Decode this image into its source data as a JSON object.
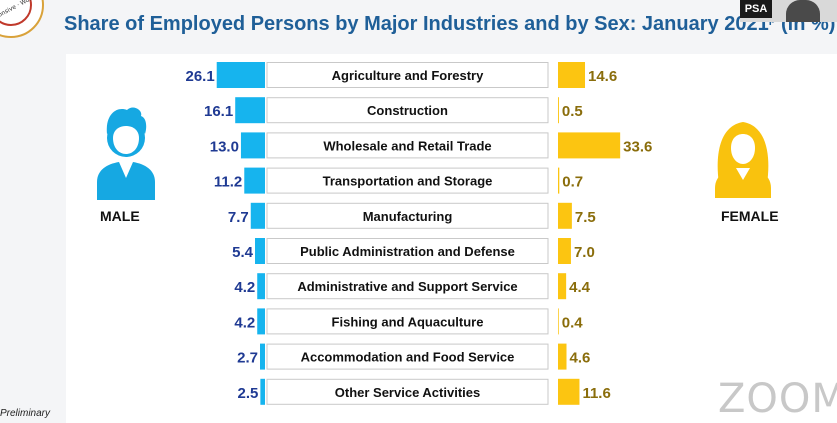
{
  "header": {
    "title": "Share of Employed Persons by Major Industries and by Sex: January 2021",
    "title_marker": "p",
    "title_suffix": "(in %)"
  },
  "logo": {
    "text": "Responsive · World-cl"
  },
  "video": {
    "badge": "PSA"
  },
  "labels": {
    "male": "MALE",
    "female": "FEMALE"
  },
  "footnote": "Preliminary",
  "watermark": "ZOOM",
  "colors": {
    "title": "#1f5f98",
    "male_bar": "#16b4ee",
    "male_value": "#1f3a93",
    "female_bar": "#fcc511",
    "female_value": "#8a6d0b",
    "male_icon": "#16a8e2",
    "female_icon": "#f9c20e"
  },
  "icons": {
    "male": "man-icon",
    "female": "woman-icon"
  },
  "chart_data": {
    "type": "bar",
    "title": "Share of Employed Persons by Major Industries and by Sex: January 2021",
    "categories": [
      "Agriculture and Forestry",
      "Construction",
      "Wholesale and Retail Trade",
      "Transportation and Storage",
      "Manufacturing",
      "Public Administration and Defense",
      "Administrative and Support Service",
      "Fishing and Aquaculture",
      "Accommodation and Food Service",
      "Other Service Activities"
    ],
    "series": [
      {
        "name": "MALE",
        "values": [
          26.1,
          16.1,
          13.0,
          11.2,
          7.7,
          5.4,
          4.2,
          4.2,
          2.7,
          2.5
        ],
        "labels": [
          "26.1",
          "16.1",
          "13.0",
          "11.2",
          "7.7",
          "5.4",
          "4.2",
          "4.2",
          "2.7",
          "2.5"
        ]
      },
      {
        "name": "FEMALE",
        "values": [
          14.6,
          0.5,
          33.6,
          0.7,
          7.5,
          7.0,
          4.4,
          0.4,
          4.6,
          11.6
        ],
        "labels": [
          "14.6",
          "0.5",
          "33.6",
          "0.7",
          "7.5",
          "7.0",
          "4.4",
          "0.4",
          "4.6",
          "11.6"
        ]
      }
    ]
  }
}
